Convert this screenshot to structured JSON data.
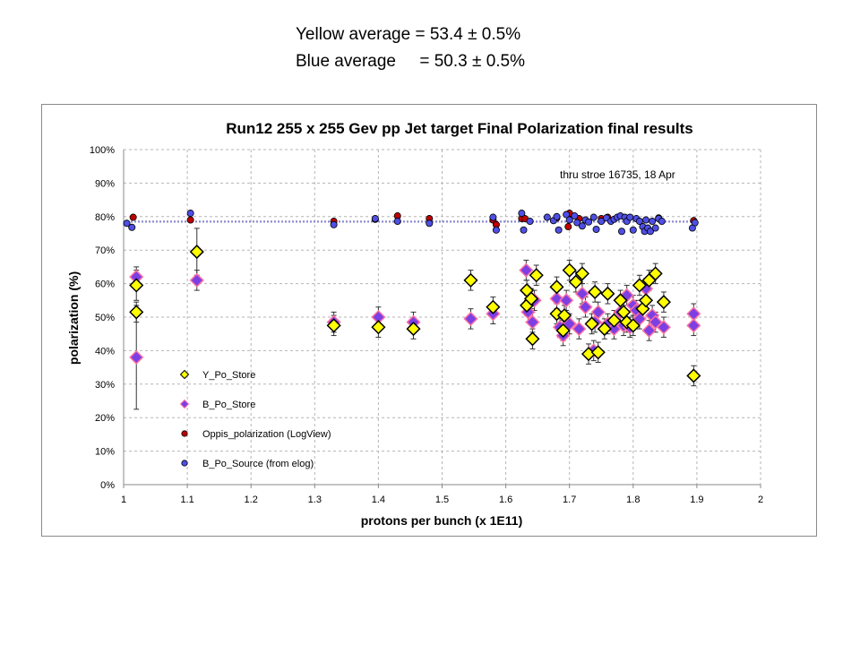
{
  "header": {
    "line1": "Yellow average = 53.4 ± 0.5%",
    "line2": "Blue average     = 50.3 ± 0.5%"
  },
  "chart_data": {
    "type": "scatter",
    "title": "Run12 255 x 255 Gev pp Jet target Final Polarization final results",
    "xlabel": "protons per bunch (x 1E11)",
    "ylabel": "polarization (%)",
    "annotation": "thru stroe 16735, 18 Apr",
    "xlim": [
      1,
      2
    ],
    "ylim": [
      0,
      100
    ],
    "x_ticks": [
      "1",
      "1.1",
      "1.2",
      "1.3",
      "1.4",
      "1.5",
      "1.6",
      "1.7",
      "1.8",
      "1.9",
      "2"
    ],
    "y_ticks": [
      "0%",
      "10%",
      "20%",
      "30%",
      "40%",
      "50%",
      "60%",
      "70%",
      "80%",
      "90%",
      "100%"
    ],
    "grid": true,
    "legend_position": "bottom-left",
    "reference_line": {
      "y": 78.5,
      "color": "#8a8ad0"
    },
    "series": [
      {
        "name": "Y_Po_Store",
        "marker": "diamond",
        "color": "#ffff00",
        "stroke": "#000000",
        "points": [
          {
            "x": 1.02,
            "y": 59.5,
            "err": 4.5
          },
          {
            "x": 1.02,
            "y": 51.5,
            "err": 3
          },
          {
            "x": 1.115,
            "y": 69.5,
            "err": 7
          },
          {
            "x": 1.33,
            "y": 47.5,
            "err": 3
          },
          {
            "x": 1.4,
            "y": 47,
            "err": 3
          },
          {
            "x": 1.455,
            "y": 46.5,
            "err": 3
          },
          {
            "x": 1.545,
            "y": 61,
            "err": 3
          },
          {
            "x": 1.58,
            "y": 53,
            "err": 3
          },
          {
            "x": 1.633,
            "y": 58,
            "err": 3
          },
          {
            "x": 1.633,
            "y": 53.5,
            "err": 3
          },
          {
            "x": 1.64,
            "y": 55.5,
            "err": 3
          },
          {
            "x": 1.642,
            "y": 43.5,
            "err": 3
          },
          {
            "x": 1.648,
            "y": 62.5,
            "err": 3
          },
          {
            "x": 1.68,
            "y": 59,
            "err": 3
          },
          {
            "x": 1.68,
            "y": 51,
            "err": 3
          },
          {
            "x": 1.69,
            "y": 46,
            "err": 3
          },
          {
            "x": 1.692,
            "y": 50.5,
            "err": 3
          },
          {
            "x": 1.7,
            "y": 64,
            "err": 3
          },
          {
            "x": 1.71,
            "y": 60.5,
            "err": 3
          },
          {
            "x": 1.72,
            "y": 63,
            "err": 3
          },
          {
            "x": 1.73,
            "y": 39,
            "err": 3
          },
          {
            "x": 1.735,
            "y": 48,
            "err": 3
          },
          {
            "x": 1.74,
            "y": 57.5,
            "err": 3
          },
          {
            "x": 1.745,
            "y": 39.5,
            "err": 3
          },
          {
            "x": 1.755,
            "y": 46.5,
            "err": 3
          },
          {
            "x": 1.76,
            "y": 57,
            "err": 3
          },
          {
            "x": 1.77,
            "y": 49,
            "err": 3
          },
          {
            "x": 1.78,
            "y": 55,
            "err": 3
          },
          {
            "x": 1.785,
            "y": 51.5,
            "err": 3
          },
          {
            "x": 1.79,
            "y": 48.5,
            "err": 3
          },
          {
            "x": 1.8,
            "y": 47.5,
            "err": 3
          },
          {
            "x": 1.81,
            "y": 59.5,
            "err": 3
          },
          {
            "x": 1.815,
            "y": 52.5,
            "err": 3
          },
          {
            "x": 1.82,
            "y": 55,
            "err": 3
          },
          {
            "x": 1.825,
            "y": 61,
            "err": 3
          },
          {
            "x": 1.835,
            "y": 63,
            "err": 3
          },
          {
            "x": 1.848,
            "y": 54.5,
            "err": 3
          },
          {
            "x": 1.895,
            "y": 32.5,
            "err": 3
          }
        ]
      },
      {
        "name": "B_Po_Store",
        "marker": "diamond",
        "color": "#7b3fe4",
        "stroke": "#ff6fa0",
        "points": [
          {
            "x": 1.02,
            "y": 62,
            "err": 3
          },
          {
            "x": 1.02,
            "y": 38,
            "err": 15.5
          },
          {
            "x": 1.115,
            "y": 61,
            "err": 3
          },
          {
            "x": 1.33,
            "y": 48.5,
            "err": 3
          },
          {
            "x": 1.4,
            "y": 50,
            "err": 3
          },
          {
            "x": 1.455,
            "y": 48.5,
            "err": 3
          },
          {
            "x": 1.545,
            "y": 49.5,
            "err": 3
          },
          {
            "x": 1.58,
            "y": 51,
            "err": 3
          },
          {
            "x": 1.632,
            "y": 64,
            "err": 3
          },
          {
            "x": 1.635,
            "y": 51.5,
            "err": 3
          },
          {
            "x": 1.642,
            "y": 48.5,
            "err": 3
          },
          {
            "x": 1.645,
            "y": 55,
            "err": 3
          },
          {
            "x": 1.68,
            "y": 55.5,
            "err": 3
          },
          {
            "x": 1.685,
            "y": 47,
            "err": 3
          },
          {
            "x": 1.69,
            "y": 44.5,
            "err": 3
          },
          {
            "x": 1.695,
            "y": 55,
            "err": 3
          },
          {
            "x": 1.7,
            "y": 48,
            "err": 3
          },
          {
            "x": 1.715,
            "y": 46.5,
            "err": 3
          },
          {
            "x": 1.72,
            "y": 57,
            "err": 3
          },
          {
            "x": 1.725,
            "y": 53,
            "err": 3
          },
          {
            "x": 1.738,
            "y": 40,
            "err": 3
          },
          {
            "x": 1.74,
            "y": 48.5,
            "err": 3
          },
          {
            "x": 1.745,
            "y": 51.5,
            "err": 3
          },
          {
            "x": 1.76,
            "y": 48,
            "err": 3
          },
          {
            "x": 1.77,
            "y": 46.5,
            "err": 3
          },
          {
            "x": 1.78,
            "y": 51.5,
            "err": 3
          },
          {
            "x": 1.785,
            "y": 47.5,
            "err": 3
          },
          {
            "x": 1.79,
            "y": 56.5,
            "err": 3
          },
          {
            "x": 1.795,
            "y": 47,
            "err": 3
          },
          {
            "x": 1.8,
            "y": 53.5,
            "err": 3
          },
          {
            "x": 1.805,
            "y": 52,
            "err": 3
          },
          {
            "x": 1.81,
            "y": 49.5,
            "err": 3
          },
          {
            "x": 1.82,
            "y": 58.5,
            "err": 3
          },
          {
            "x": 1.825,
            "y": 46,
            "err": 3
          },
          {
            "x": 1.83,
            "y": 50.5,
            "err": 3
          },
          {
            "x": 1.835,
            "y": 48.5,
            "err": 3
          },
          {
            "x": 1.848,
            "y": 47,
            "err": 3
          },
          {
            "x": 1.895,
            "y": 51,
            "err": 3
          },
          {
            "x": 1.895,
            "y": 47.5,
            "err": 3
          }
        ]
      },
      {
        "name": "Oppis_polarization (LogView)",
        "marker": "circle",
        "color": "#c00000",
        "stroke": "#000000",
        "points": [
          {
            "x": 1.015,
            "y": 79.8
          },
          {
            "x": 1.105,
            "y": 79.0
          },
          {
            "x": 1.33,
            "y": 78.6
          },
          {
            "x": 1.395,
            "y": 79.2
          },
          {
            "x": 1.43,
            "y": 80.2
          },
          {
            "x": 1.48,
            "y": 79.4
          },
          {
            "x": 1.58,
            "y": 79.0
          },
          {
            "x": 1.585,
            "y": 77.6
          },
          {
            "x": 1.625,
            "y": 79.4
          },
          {
            "x": 1.63,
            "y": 79.4
          },
          {
            "x": 1.68,
            "y": 79.6
          },
          {
            "x": 1.7,
            "y": 81.0
          },
          {
            "x": 1.698,
            "y": 77.0
          },
          {
            "x": 1.715,
            "y": 79.4
          },
          {
            "x": 1.75,
            "y": 79.4
          },
          {
            "x": 1.76,
            "y": 79.8
          },
          {
            "x": 1.79,
            "y": 79.2
          },
          {
            "x": 1.84,
            "y": 79.6
          },
          {
            "x": 1.895,
            "y": 78.8
          }
        ]
      },
      {
        "name": "B_Po_Source (from elog)",
        "marker": "circle",
        "color": "#4f4fe6",
        "stroke": "#000000",
        "points": [
          {
            "x": 1.005,
            "y": 78.0
          },
          {
            "x": 1.013,
            "y": 76.8
          },
          {
            "x": 1.105,
            "y": 81.0
          },
          {
            "x": 1.33,
            "y": 77.6
          },
          {
            "x": 1.395,
            "y": 79.4
          },
          {
            "x": 1.43,
            "y": 78.6
          },
          {
            "x": 1.48,
            "y": 78.0
          },
          {
            "x": 1.58,
            "y": 79.8
          },
          {
            "x": 1.585,
            "y": 76.0
          },
          {
            "x": 1.625,
            "y": 81.0
          },
          {
            "x": 1.628,
            "y": 76.0
          },
          {
            "x": 1.638,
            "y": 78.6
          },
          {
            "x": 1.665,
            "y": 79.8
          },
          {
            "x": 1.675,
            "y": 78.8
          },
          {
            "x": 1.68,
            "y": 80.0
          },
          {
            "x": 1.683,
            "y": 76.0
          },
          {
            "x": 1.695,
            "y": 80.6
          },
          {
            "x": 1.7,
            "y": 79.0
          },
          {
            "x": 1.708,
            "y": 80.2
          },
          {
            "x": 1.712,
            "y": 78.2
          },
          {
            "x": 1.72,
            "y": 77.2
          },
          {
            "x": 1.725,
            "y": 79.0
          },
          {
            "x": 1.73,
            "y": 78.4
          },
          {
            "x": 1.738,
            "y": 79.8
          },
          {
            "x": 1.742,
            "y": 76.2
          },
          {
            "x": 1.75,
            "y": 78.6
          },
          {
            "x": 1.758,
            "y": 79.6
          },
          {
            "x": 1.765,
            "y": 78.6
          },
          {
            "x": 1.77,
            "y": 79.2
          },
          {
            "x": 1.775,
            "y": 79.8
          },
          {
            "x": 1.78,
            "y": 80.2
          },
          {
            "x": 1.782,
            "y": 75.6
          },
          {
            "x": 1.787,
            "y": 79.8
          },
          {
            "x": 1.79,
            "y": 78.6
          },
          {
            "x": 1.795,
            "y": 79.8
          },
          {
            "x": 1.8,
            "y": 76.0
          },
          {
            "x": 1.805,
            "y": 79.4
          },
          {
            "x": 1.81,
            "y": 78.6
          },
          {
            "x": 1.815,
            "y": 77.0
          },
          {
            "x": 1.818,
            "y": 75.6
          },
          {
            "x": 1.82,
            "y": 79.0
          },
          {
            "x": 1.823,
            "y": 76.6
          },
          {
            "x": 1.827,
            "y": 75.6
          },
          {
            "x": 1.83,
            "y": 78.6
          },
          {
            "x": 1.835,
            "y": 76.6
          },
          {
            "x": 1.84,
            "y": 79.4
          },
          {
            "x": 1.845,
            "y": 78.6
          },
          {
            "x": 1.893,
            "y": 76.6
          },
          {
            "x": 1.897,
            "y": 78.2
          }
        ]
      }
    ]
  }
}
